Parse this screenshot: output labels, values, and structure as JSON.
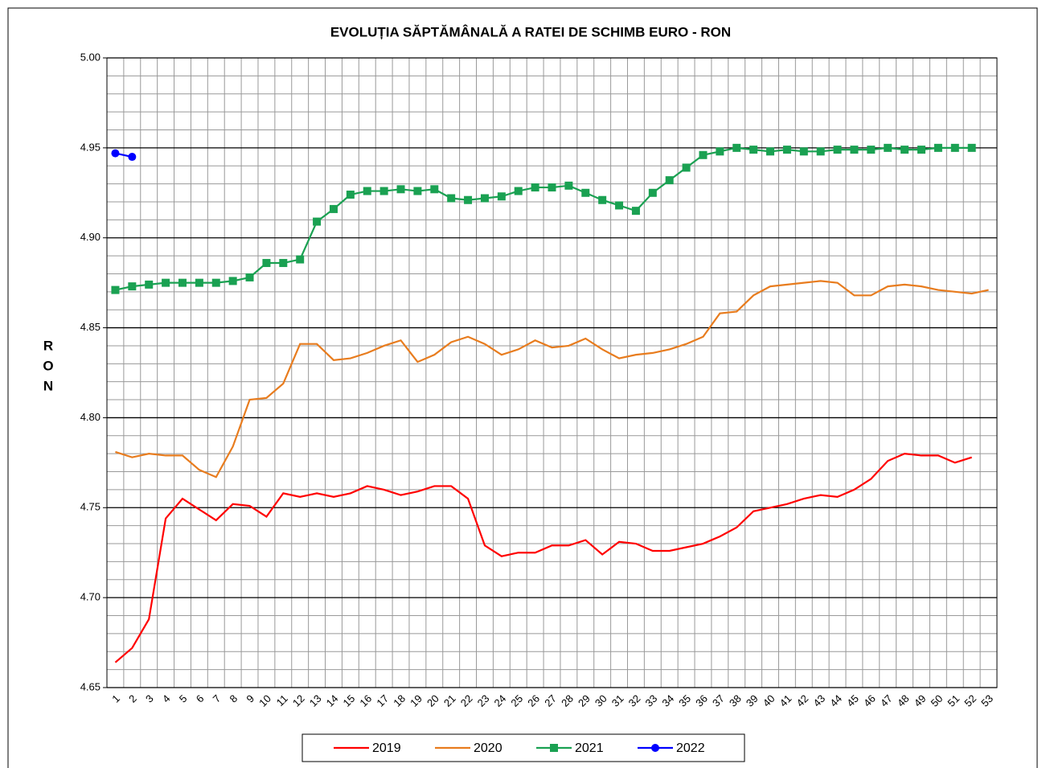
{
  "chart_data": {
    "type": "line",
    "title": "EVOLUȚIA SĂPTĂMÂNALĂ A RATEI DE SCHIMB EURO - RON",
    "y_label": "RON",
    "categories": [
      "1",
      "2",
      "3",
      "4",
      "5",
      "6",
      "7",
      "8",
      "9",
      "10",
      "11",
      "12",
      "13",
      "14",
      "15",
      "16",
      "17",
      "18",
      "19",
      "20",
      "21",
      "22",
      "23",
      "24",
      "25",
      "26",
      "27",
      "28",
      "29",
      "30",
      "31",
      "32",
      "33",
      "34",
      "35",
      "36",
      "37",
      "38",
      "39",
      "40",
      "41",
      "42",
      "43",
      "44",
      "45",
      "46",
      "47",
      "48",
      "49",
      "50",
      "51",
      "52",
      "53"
    ],
    "ylim": [
      4.65,
      5.0
    ],
    "yticks": [
      {
        "value": 4.65,
        "label": "4.65"
      },
      {
        "value": 4.7,
        "label": "4.70"
      },
      {
        "value": 4.75,
        "label": "4.75"
      },
      {
        "value": 4.8,
        "label": "4.80"
      },
      {
        "value": 4.85,
        "label": "4.85"
      },
      {
        "value": 4.9,
        "label": "4.90"
      },
      {
        "value": 4.95,
        "label": "4.95"
      },
      {
        "value": 5.0,
        "label": "5.00"
      }
    ],
    "grid": true,
    "legend": "bottom",
    "series": [
      {
        "name": "2019",
        "color": "#ff0000",
        "marker": "none",
        "values": [
          4.664,
          4.672,
          4.688,
          4.744,
          4.755,
          4.749,
          4.743,
          4.752,
          4.751,
          4.745,
          4.758,
          4.756,
          4.758,
          4.756,
          4.758,
          4.762,
          4.76,
          4.757,
          4.759,
          4.762,
          4.762,
          4.755,
          4.729,
          4.723,
          4.725,
          4.725,
          4.729,
          4.729,
          4.732,
          4.724,
          4.731,
          4.73,
          4.726,
          4.726,
          4.728,
          4.73,
          4.734,
          4.739,
          4.748,
          4.75,
          4.752,
          4.755,
          4.757,
          4.756,
          4.76,
          4.766,
          4.776,
          4.78,
          4.779,
          4.779,
          4.775,
          4.778,
          null
        ]
      },
      {
        "name": "2020",
        "color": "#e87c1e",
        "marker": "none",
        "values": [
          4.781,
          4.778,
          4.78,
          4.779,
          4.779,
          4.771,
          4.767,
          4.784,
          4.81,
          4.811,
          4.819,
          4.841,
          4.841,
          4.832,
          4.833,
          4.836,
          4.84,
          4.843,
          4.831,
          4.835,
          4.842,
          4.845,
          4.841,
          4.835,
          4.838,
          4.843,
          4.839,
          4.84,
          4.844,
          4.838,
          4.833,
          4.835,
          4.836,
          4.838,
          4.841,
          4.845,
          4.858,
          4.859,
          4.868,
          4.873,
          4.874,
          4.875,
          4.876,
          4.875,
          4.868,
          4.868,
          4.873,
          4.874,
          4.873,
          4.871,
          4.87,
          4.869,
          4.871
        ]
      },
      {
        "name": "2021",
        "color": "#1aa152",
        "marker": "square",
        "values": [
          4.871,
          4.873,
          4.874,
          4.875,
          4.875,
          4.875,
          4.875,
          4.876,
          4.878,
          4.886,
          4.886,
          4.888,
          4.909,
          4.916,
          4.924,
          4.926,
          4.926,
          4.927,
          4.926,
          4.927,
          4.922,
          4.921,
          4.922,
          4.923,
          4.926,
          4.928,
          4.928,
          4.929,
          4.925,
          4.921,
          4.918,
          4.915,
          4.925,
          4.932,
          4.939,
          4.946,
          4.948,
          4.95,
          4.949,
          4.948,
          4.949,
          4.948,
          4.948,
          4.949,
          4.949,
          4.949,
          4.95,
          4.949,
          4.949,
          4.95,
          4.95,
          4.95,
          null
        ]
      },
      {
        "name": "2022",
        "color": "#0000ff",
        "marker": "circle",
        "values": [
          4.947,
          4.945,
          null,
          null,
          null,
          null,
          null,
          null,
          null,
          null,
          null,
          null,
          null,
          null,
          null,
          null,
          null,
          null,
          null,
          null,
          null,
          null,
          null,
          null,
          null,
          null,
          null,
          null,
          null,
          null,
          null,
          null,
          null,
          null,
          null,
          null,
          null,
          null,
          null,
          null,
          null,
          null,
          null,
          null,
          null,
          null,
          null,
          null,
          null,
          null,
          null,
          null,
          null
        ]
      }
    ]
  }
}
